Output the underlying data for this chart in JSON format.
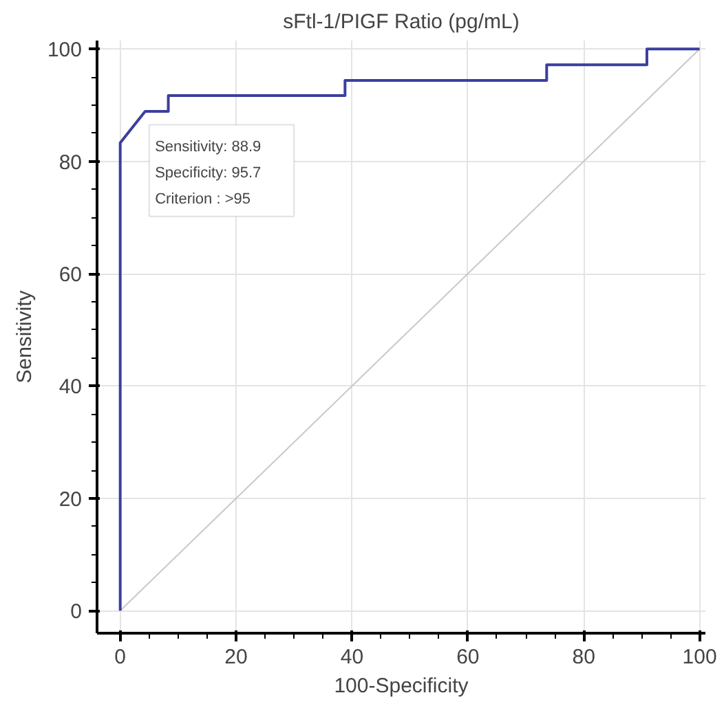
{
  "chart_data": {
    "type": "line",
    "title": "sFtl-1/PIGF Ratio (pg/mL)",
    "xlabel": "100-Specificity",
    "ylabel": "Sensitivity",
    "series": [
      {
        "color": "#3b3f9e",
        "x": [
          0,
          0,
          4.3,
          4.3,
          8.3,
          8.3,
          38.8,
          38.8,
          73.6,
          73.6,
          90.9,
          90.9,
          100
        ],
        "values": [
          0,
          83.3,
          88.9,
          88.9,
          88.9,
          91.7,
          91.7,
          94.4,
          94.4,
          97.2,
          97.2,
          100,
          100
        ]
      },
      {
        "color": "#c8c8c8",
        "x": [
          0,
          100
        ],
        "values": [
          0,
          100
        ]
      }
    ],
    "annotations": [
      "Sensitivity: 88.9",
      "Specificity: 95.7",
      "Criterion : >95"
    ],
    "xlim": [
      -4,
      101
    ],
    "ylim": [
      -4,
      101.5
    ],
    "xticks": [
      0,
      20,
      40,
      60,
      80,
      100
    ],
    "yticks": [
      0,
      20,
      40,
      60,
      80,
      100
    ],
    "grid": true,
    "marker": "none",
    "line_style": "solid"
  }
}
